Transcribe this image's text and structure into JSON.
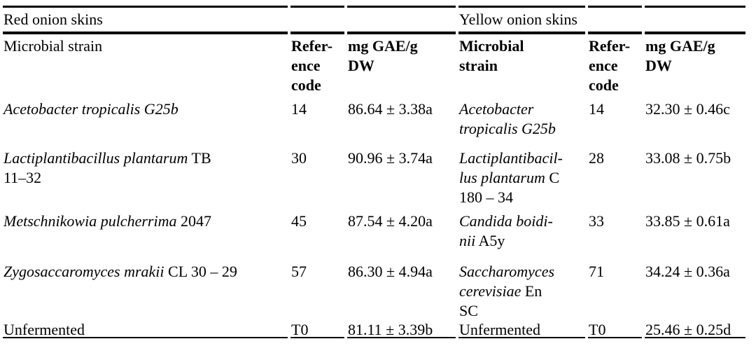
{
  "page": {
    "background": "#ffffff",
    "text_color": "#000000"
  },
  "table": {
    "group_headers": {
      "red": "Red onion skins",
      "yellow": "Yellow onion skins"
    },
    "column_headers": {
      "red_strain": "Microbial strain",
      "red_ref": "Refer-\nence\ncode",
      "red_value": "mg GAE/g\nDW",
      "yellow_strain": "Microbial\nstrain",
      "yellow_ref": "Refer-\nence\ncode",
      "yellow_value": "mg GAE/g\nDW"
    },
    "rows": [
      {
        "red": {
          "strain_italic": "Acetobacter tropicalis G25b",
          "strain_regular": "",
          "ref": "14",
          "value": "86.64 ± 3.38a"
        },
        "yellow": {
          "strain_italic": "Acetobacter\ntropicalis G25b",
          "strain_regular": "",
          "ref": "14",
          "value": "32.30 ± 0.46c"
        }
      },
      {
        "red": {
          "strain_italic": "Lactiplantibacillus plantarum",
          "strain_regular": " TB\n11–32",
          "ref": "30",
          "value": "90.96 ± 3.74a"
        },
        "yellow": {
          "strain_italic": "Lactiplantibacil-\nlus plantarum",
          "strain_regular": " C\n180 – 34",
          "ref": "28",
          "value": "33.08 ± 0.75b"
        }
      },
      {
        "red": {
          "strain_italic": "Metschnikowia pulcherrima",
          "strain_regular": " 2047",
          "ref": "45",
          "value": "87.54 ± 4.20a"
        },
        "yellow": {
          "strain_italic": "Candida boidi-\nnii",
          "strain_regular": " A5y",
          "ref": "33",
          "value": "33.85 ± 0.61a"
        }
      },
      {
        "red": {
          "strain_italic": "Zygosaccaromyces mrakii",
          "strain_regular": " CL 30 – 29",
          "ref": "57",
          "value": "86.30 ± 4.94a"
        },
        "yellow": {
          "strain_italic": "Saccharomyces\ncerevisiae",
          "strain_regular": " En\nSC",
          "ref": "71",
          "value": "34.24 ± 0.36a"
        }
      },
      {
        "red": {
          "strain_italic": "",
          "strain_regular": "Unfermented",
          "ref": "T0",
          "value": "81.11 ± 3.39b"
        },
        "yellow": {
          "strain_italic": "",
          "strain_regular": "Unfermented",
          "ref": "T0",
          "value": "25.46 ± 0.25d"
        }
      }
    ]
  }
}
